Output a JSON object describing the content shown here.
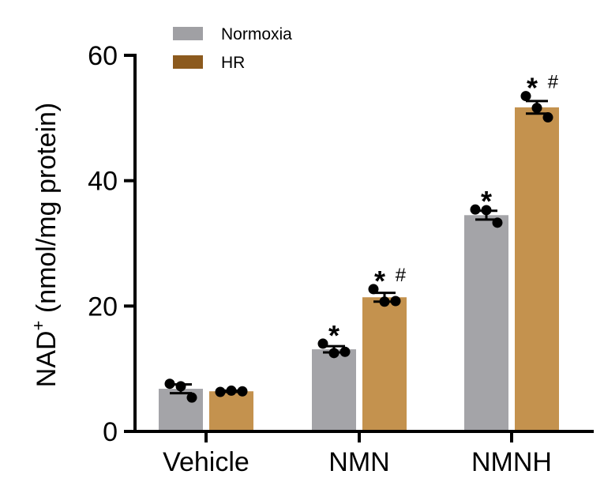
{
  "chart_data": {
    "type": "bar",
    "title": "",
    "xlabel": "",
    "ylabel": "NAD",
    "ylabel_superscript": "+",
    "ylabel_units": " (nmol/mg protein)",
    "ylim": [
      0,
      60
    ],
    "yticks": [
      0,
      20,
      40,
      60
    ],
    "ytick_labels": [
      "0",
      "20",
      "40",
      "60"
    ],
    "grid": false,
    "legend_position": "top-left",
    "categories": [
      "Vehicle",
      "NMN",
      "NMNH"
    ],
    "series": [
      {
        "name": "Normoxia",
        "color": "#a4a4a8",
        "legend_color": "#a0a0a4",
        "values": [
          6.8,
          13.1,
          34.5
        ],
        "error": [
          0.7,
          0.5,
          0.7
        ],
        "points": [
          [
            7.6,
            7.2,
            5.4
          ],
          [
            14.0,
            12.5,
            12.7
          ],
          [
            35.4,
            35.3,
            33.3
          ]
        ],
        "annotations": [
          "",
          "*",
          "*"
        ]
      },
      {
        "name": "HR",
        "color": "#c4924e",
        "legend_color": "#8c5a1e",
        "values": [
          6.4,
          21.4,
          51.7
        ],
        "error": [
          0.1,
          0.7,
          1.0
        ],
        "points": [
          [
            6.3,
            6.5,
            6.4
          ],
          [
            22.7,
            20.7,
            20.8
          ],
          [
            53.5,
            51.6,
            50.1
          ]
        ],
        "annotations": [
          "",
          "* #",
          "* #"
        ]
      }
    ]
  }
}
